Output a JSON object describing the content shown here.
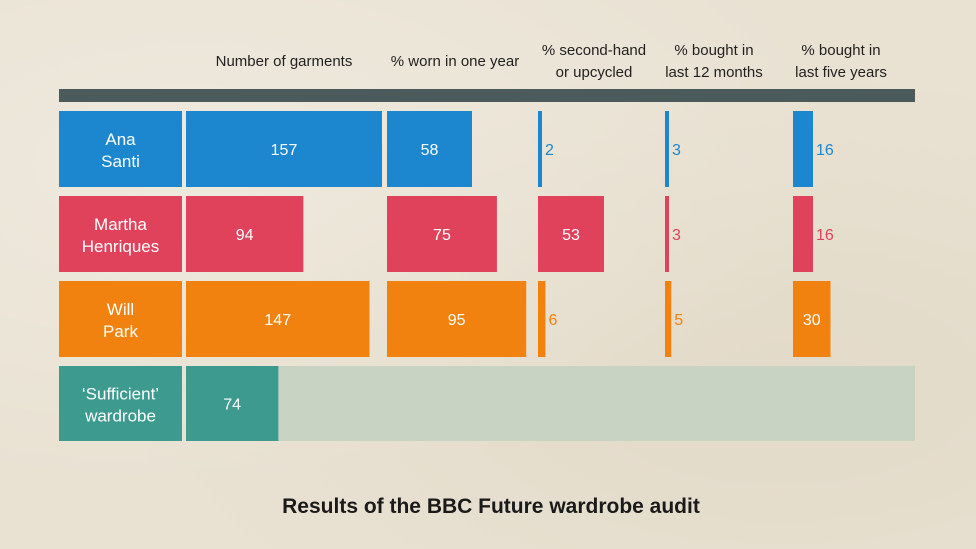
{
  "chart_data": {
    "type": "table",
    "title": "Results of the BBC Future wardrobe audit",
    "columns": [
      [
        "Number of garments"
      ],
      [
        "% worn in one year"
      ],
      [
        "% second-hand",
        "or upcycled"
      ],
      [
        "% bought in",
        "last 12 months"
      ],
      [
        "% bought in",
        "last five years"
      ]
    ],
    "rows": [
      {
        "label": [
          "Ana",
          "Santi"
        ],
        "color": "#1c87cf",
        "values": [
          157,
          58,
          2,
          3,
          16
        ]
      },
      {
        "label": [
          "Martha",
          "Henriques"
        ],
        "color": "#e0425b",
        "values": [
          94,
          75,
          53,
          3,
          16
        ]
      },
      {
        "label": [
          "Will",
          "Park"
        ],
        "color": "#f2820f",
        "values": [
          147,
          95,
          6,
          5,
          30
        ]
      },
      {
        "label": [
          "‘Sufficient’",
          "wardrobe"
        ],
        "color": "#3d9a8e",
        "values": [
          74
        ]
      }
    ],
    "colors": {
      "header_bar": "#4b5a5a",
      "band": "#c8d3c4",
      "background": "#e9e2d3"
    }
  }
}
